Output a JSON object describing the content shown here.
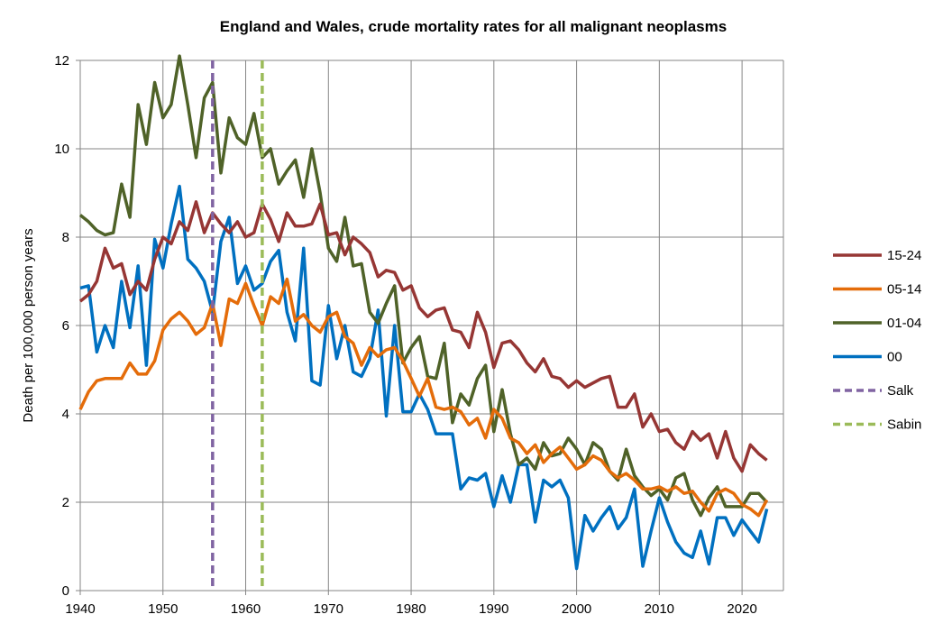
{
  "chart_data": {
    "type": "line",
    "title": "England and Wales, crude mortality rates for all malignant neoplasms",
    "xlabel": "",
    "ylabel": "Death per 100,000 person years",
    "xlim": [
      1940,
      2025
    ],
    "ylim": [
      0,
      12
    ],
    "xticks": [
      1940,
      1950,
      1960,
      1970,
      1980,
      1990,
      2000,
      2010,
      2020
    ],
    "xtick_labels": [
      "1940",
      "1950",
      "1960",
      "1970",
      "1980",
      "1990",
      "2000",
      "2010",
      "2020"
    ],
    "yticks": [
      0,
      2,
      4,
      6,
      8,
      10,
      12
    ],
    "ytick_labels": [
      "0",
      "2",
      "4",
      "6",
      "8",
      "10",
      "12"
    ],
    "grid": true,
    "legend_position": "right",
    "x_start": 1940,
    "series": [
      {
        "name": "15-24",
        "color": "#963634",
        "dash": false,
        "values": [
          6.55,
          6.7,
          7.0,
          7.75,
          7.3,
          7.4,
          6.7,
          7.0,
          6.8,
          7.5,
          8.0,
          7.85,
          8.35,
          8.15,
          8.8,
          8.1,
          8.55,
          8.3,
          8.1,
          8.35,
          8.0,
          8.1,
          8.75,
          8.4,
          7.9,
          8.55,
          8.25,
          8.25,
          8.3,
          8.75,
          8.05,
          8.1,
          7.6,
          8.0,
          7.85,
          7.65,
          7.1,
          7.25,
          7.2,
          6.8,
          6.9,
          6.4,
          6.2,
          6.35,
          6.4,
          5.9,
          5.85,
          5.5,
          6.3,
          5.85,
          5.05,
          5.6,
          5.65,
          5.45,
          5.15,
          4.95,
          5.25,
          4.85,
          4.8,
          4.6,
          4.75,
          4.6,
          4.7,
          4.8,
          4.85,
          4.15,
          4.15,
          4.45,
          3.7,
          4.0,
          3.6,
          3.65,
          3.35,
          3.2,
          3.6,
          3.4,
          3.55,
          3.0,
          3.6,
          3.0,
          2.7,
          3.3,
          3.1,
          2.95
        ]
      },
      {
        "name": "05-14",
        "color": "#E46C0A",
        "dash": false,
        "values": [
          4.1,
          4.5,
          4.75,
          4.8,
          4.8,
          4.8,
          5.15,
          4.9,
          4.9,
          5.2,
          5.9,
          6.15,
          6.3,
          6.1,
          5.8,
          5.95,
          6.5,
          5.55,
          6.6,
          6.5,
          6.95,
          6.45,
          6.0,
          6.65,
          6.5,
          7.05,
          6.1,
          6.25,
          6.0,
          5.85,
          6.2,
          6.3,
          5.75,
          5.6,
          5.1,
          5.5,
          5.3,
          5.45,
          5.5,
          5.2,
          4.8,
          4.4,
          4.8,
          4.15,
          4.1,
          4.15,
          4.05,
          3.75,
          3.9,
          3.45,
          4.1,
          3.9,
          3.45,
          3.35,
          3.1,
          3.3,
          2.9,
          3.1,
          3.25,
          3.0,
          2.75,
          2.85,
          3.05,
          2.95,
          2.7,
          2.55,
          2.65,
          2.5,
          2.3,
          2.3,
          2.35,
          2.25,
          2.35,
          2.2,
          2.25,
          2.0,
          1.8,
          2.2,
          2.3,
          2.2,
          1.95,
          1.85,
          1.7,
          2.05
        ]
      },
      {
        "name": "01-04",
        "color": "#4F6228",
        "dash": false,
        "values": [
          8.5,
          8.35,
          8.15,
          8.05,
          8.1,
          9.2,
          8.45,
          11.0,
          10.1,
          11.5,
          10.7,
          11.0,
          12.1,
          11.0,
          9.8,
          11.15,
          11.5,
          9.45,
          10.7,
          10.25,
          10.1,
          10.8,
          9.8,
          10.0,
          9.2,
          9.5,
          9.75,
          8.9,
          10.0,
          9.0,
          7.75,
          7.45,
          8.45,
          7.35,
          7.4,
          6.3,
          6.05,
          6.5,
          6.9,
          5.15,
          5.5,
          5.75,
          4.85,
          4.8,
          5.6,
          3.8,
          4.45,
          4.2,
          4.8,
          5.1,
          3.6,
          4.55,
          3.55,
          2.85,
          3.0,
          2.75,
          3.35,
          3.05,
          3.1,
          3.45,
          3.2,
          2.85,
          3.35,
          3.2,
          2.7,
          2.5,
          3.2,
          2.6,
          2.35,
          2.15,
          2.3,
          2.05,
          2.55,
          2.65,
          2.05,
          1.7,
          2.1,
          2.35,
          1.9,
          1.9,
          1.9,
          2.2,
          2.2,
          2.0
        ]
      },
      {
        "name": "00",
        "color": "#0070C0",
        "dash": false,
        "values": [
          6.85,
          6.9,
          5.4,
          6.0,
          5.5,
          7.0,
          5.95,
          7.35,
          5.1,
          7.95,
          7.3,
          8.3,
          9.15,
          7.5,
          7.3,
          7.0,
          6.3,
          7.9,
          8.45,
          6.95,
          7.35,
          6.8,
          6.95,
          7.45,
          7.7,
          6.3,
          5.65,
          7.75,
          4.75,
          4.65,
          6.45,
          5.25,
          6.0,
          4.95,
          4.85,
          5.25,
          6.35,
          3.95,
          6.0,
          4.05,
          4.05,
          4.45,
          4.1,
          3.55,
          3.55,
          3.55,
          2.3,
          2.55,
          2.5,
          2.65,
          1.9,
          2.6,
          2.0,
          2.85,
          2.85,
          1.55,
          2.5,
          2.35,
          2.5,
          2.1,
          0.5,
          1.7,
          1.35,
          1.65,
          1.9,
          1.4,
          1.65,
          2.3,
          0.55,
          1.35,
          2.1,
          1.55,
          1.1,
          0.85,
          0.75,
          1.35,
          0.6,
          1.65,
          1.65,
          1.25,
          1.6,
          1.35,
          1.1,
          1.85
        ]
      }
    ],
    "vlines": [
      {
        "name": "Salk",
        "year": 1956,
        "color": "#8064A2",
        "dash": true
      },
      {
        "name": "Sabin",
        "year": 1962,
        "color": "#9BBB59",
        "dash": true
      }
    ],
    "legend": [
      "15-24",
      "05-14",
      "01-04",
      "00",
      "Salk",
      "Sabin"
    ]
  }
}
